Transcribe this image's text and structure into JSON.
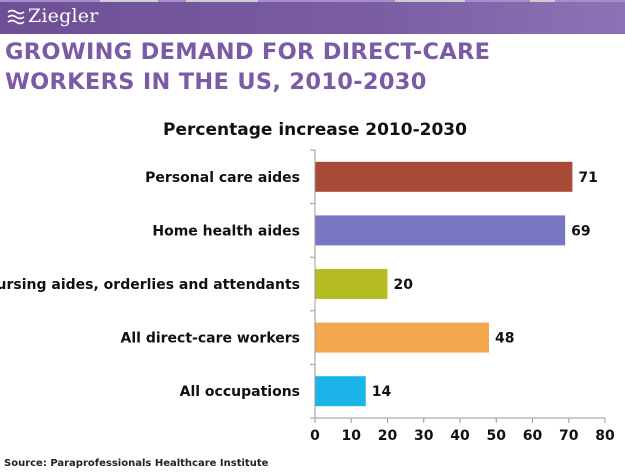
{
  "header": {
    "logo_text": "Ziegler",
    "logo_icon": "ziegler-logo-icon",
    "bar_color": "#6e4f95"
  },
  "slide": {
    "title": "GROWING DEMAND FOR DIRECT-CARE WORKERS IN THE US, 2010-2030",
    "source": "Source: Paraprofessionals Healthcare Institute"
  },
  "chart_data": {
    "type": "bar",
    "orientation": "horizontal",
    "title": "Percentage increase 2010-2030",
    "xlabel": "",
    "ylabel": "",
    "categories": [
      "Personal care aides",
      "Home health aides",
      "Nursing aides, orderlies and attendants",
      "All direct-care workers",
      "All occupations"
    ],
    "values": [
      71,
      69,
      20,
      48,
      14
    ],
    "data_labels": [
      "71",
      "69",
      "20",
      "48",
      "14"
    ],
    "colors": [
      "#a84a35",
      "#7a76c4",
      "#b5bd22",
      "#f5a84d",
      "#1ab4e8"
    ],
    "xlim": [
      0,
      80
    ],
    "xticks": [
      0,
      10,
      20,
      30,
      40,
      50,
      60,
      70,
      80
    ],
    "grid": false,
    "legend": "none"
  }
}
